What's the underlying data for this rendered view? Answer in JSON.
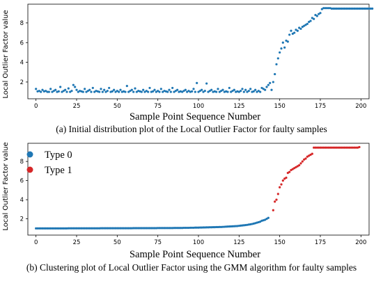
{
  "colors": {
    "type0": "#1f77b4",
    "type1": "#d62728",
    "axis": "#000000"
  },
  "chart_data": [
    {
      "type": "scatter",
      "ylabel": "Local Outlier Factor value",
      "xlabel": "Sample Point Sequence Number",
      "caption": "(a) Initial distribution plot of the Local Outlier Factor for faulty samples",
      "xlim": [
        -5,
        205
      ],
      "ylim": [
        0.3,
        9.9
      ],
      "xticks": [
        0,
        25,
        50,
        75,
        100,
        125,
        150,
        175,
        200
      ],
      "yticks": [
        2,
        4,
        6,
        8
      ],
      "series": [
        {
          "x_start": 0,
          "values": [
            1.3,
            1.05,
            1.1,
            1.0,
            1.2,
            1.05,
            1.1,
            1.0,
            1.0,
            1.3,
            1.0,
            1.1,
            1.2,
            1.0,
            1.05,
            1.5,
            1.0,
            1.1,
            1.2,
            1.0,
            1.35,
            1.0,
            1.1,
            1.7,
            1.5,
            1.2,
            1.0,
            1.1,
            1.05,
            1.0,
            1.3,
            1.0,
            1.1,
            1.2,
            1.0,
            1.4,
            1.0,
            1.1,
            1.05,
            1.0,
            1.3,
            1.0,
            1.2,
            1.0,
            1.1,
            1.4,
            1.0,
            1.05,
            1.2,
            1.0,
            1.1,
            1.0,
            1.2,
            1.0,
            1.05,
            1.0,
            1.6,
            1.0,
            1.1,
            1.2,
            1.0,
            1.35,
            1.0,
            1.1,
            1.05,
            1.0,
            1.2,
            1.0,
            1.1,
            1.0,
            1.4,
            1.0,
            1.05,
            1.2,
            1.0,
            1.1,
            1.0,
            1.3,
            1.0,
            1.1,
            1.05,
            1.0,
            1.2,
            1.0,
            1.4,
            1.0,
            1.1,
            1.2,
            1.0,
            1.05,
            1.0,
            1.1,
            1.2,
            1.0,
            1.1,
            1.0,
            1.05,
            1.3,
            1.0,
            1.9,
            1.0,
            1.1,
            1.2,
            1.0,
            1.1,
            1.85,
            1.0,
            1.1,
            1.2,
            1.0,
            1.05,
            1.0,
            1.3,
            1.0,
            1.1,
            1.2,
            1.0,
            1.05,
            1.0,
            1.4,
            1.0,
            1.1,
            1.2,
            1.0,
            1.05,
            1.0,
            1.1,
            1.3,
            1.0,
            1.2,
            1.0,
            1.1,
            1.3,
            1.0,
            1.05,
            1.2,
            1.0,
            1.1,
            1.0,
            1.4,
            1.3,
            1.2,
            1.5,
            1.7,
            1.9,
            1.2,
            2.0,
            2.8,
            3.8,
            4.4,
            5.0,
            5.4,
            6.0,
            5.5,
            6.2,
            6.1,
            6.8,
            7.2,
            6.9,
            7.0,
            7.3,
            7.2,
            7.5,
            7.4,
            7.6,
            7.7,
            7.8,
            7.9,
            8.1,
            8.2,
            8.5,
            8.4,
            8.8,
            8.7,
            8.9,
            9.0,
            9.4,
            9.5,
            9.5,
            9.5,
            9.5,
            9.5,
            9.45,
            9.45,
            9.45,
            9.45,
            9.45,
            9.45,
            9.45,
            9.45,
            9.45,
            9.45,
            9.45,
            9.45,
            9.45,
            9.45,
            9.45,
            9.45,
            9.45,
            9.45,
            9.45,
            9.45,
            9.45,
            9.45,
            9.45,
            9.45,
            9.45,
            9.45
          ]
        }
      ]
    },
    {
      "type": "scatter",
      "ylabel": "Local Outlier Factor value",
      "xlabel": "Sample Point Sequence Number",
      "caption": "(b) Clustering plot of Local Outlier Factor using the GMM algorithm for faulty samples",
      "xlim": [
        -5,
        205
      ],
      "ylim": [
        0.3,
        9.9
      ],
      "xticks": [
        0,
        25,
        50,
        75,
        100,
        125,
        150,
        175,
        200
      ],
      "yticks": [
        2,
        4,
        6,
        8
      ],
      "legend": {
        "placement": "top-left",
        "entries": [
          "Type 0",
          "Type 1"
        ]
      },
      "series": [
        {
          "name": "Type 0",
          "x_start": 0,
          "values": [
            1.0,
            1.0,
            1.0,
            1.0,
            1.0,
            1.0,
            1.0,
            1.0,
            1.0,
            1.0,
            1.0,
            1.0,
            1.0,
            1.0,
            1.0,
            1.0,
            1.0,
            1.0,
            1.0,
            1.0,
            1.01,
            1.01,
            1.01,
            1.01,
            1.01,
            1.01,
            1.01,
            1.01,
            1.01,
            1.01,
            1.01,
            1.01,
            1.01,
            1.01,
            1.01,
            1.01,
            1.01,
            1.01,
            1.01,
            1.01,
            1.02,
            1.02,
            1.02,
            1.02,
            1.02,
            1.02,
            1.02,
            1.02,
            1.02,
            1.02,
            1.02,
            1.02,
            1.02,
            1.02,
            1.02,
            1.02,
            1.02,
            1.02,
            1.02,
            1.02,
            1.03,
            1.03,
            1.03,
            1.03,
            1.03,
            1.03,
            1.03,
            1.03,
            1.03,
            1.03,
            1.03,
            1.03,
            1.03,
            1.03,
            1.03,
            1.04,
            1.04,
            1.04,
            1.04,
            1.04,
            1.04,
            1.04,
            1.04,
            1.04,
            1.04,
            1.05,
            1.05,
            1.05,
            1.05,
            1.05,
            1.05,
            1.06,
            1.06,
            1.06,
            1.06,
            1.07,
            1.07,
            1.07,
            1.08,
            1.08,
            1.08,
            1.09,
            1.09,
            1.1,
            1.1,
            1.11,
            1.11,
            1.12,
            1.12,
            1.13,
            1.13,
            1.14,
            1.14,
            1.15,
            1.15,
            1.16,
            1.17,
            1.18,
            1.19,
            1.2,
            1.21,
            1.22,
            1.23,
            1.24,
            1.25,
            1.27,
            1.29,
            1.31,
            1.33,
            1.35,
            1.37,
            1.4,
            1.43,
            1.46,
            1.5,
            1.55,
            1.6,
            1.65,
            1.7,
            1.8,
            1.85,
            1.9,
            2.0,
            2.1
          ]
        },
        {
          "name": "Type 1",
          "x_start": 146,
          "values": [
            2.9,
            3.8,
            4.0,
            4.6,
            5.3,
            5.6,
            6.0,
            6.2,
            6.3,
            6.8,
            6.9,
            7.1,
            7.2,
            7.3,
            7.4,
            7.5,
            7.6,
            7.8,
            8.0,
            8.2,
            8.3,
            8.5,
            8.6,
            8.7,
            8.8,
            9.45,
            9.45,
            9.45,
            9.45,
            9.45,
            9.45,
            9.45,
            9.45,
            9.45,
            9.45,
            9.45,
            9.45,
            9.45,
            9.45,
            9.45,
            9.45,
            9.45,
            9.45,
            9.45,
            9.45,
            9.45,
            9.45,
            9.45,
            9.45,
            9.45,
            9.45,
            9.45,
            9.45,
            9.5
          ]
        }
      ]
    }
  ]
}
